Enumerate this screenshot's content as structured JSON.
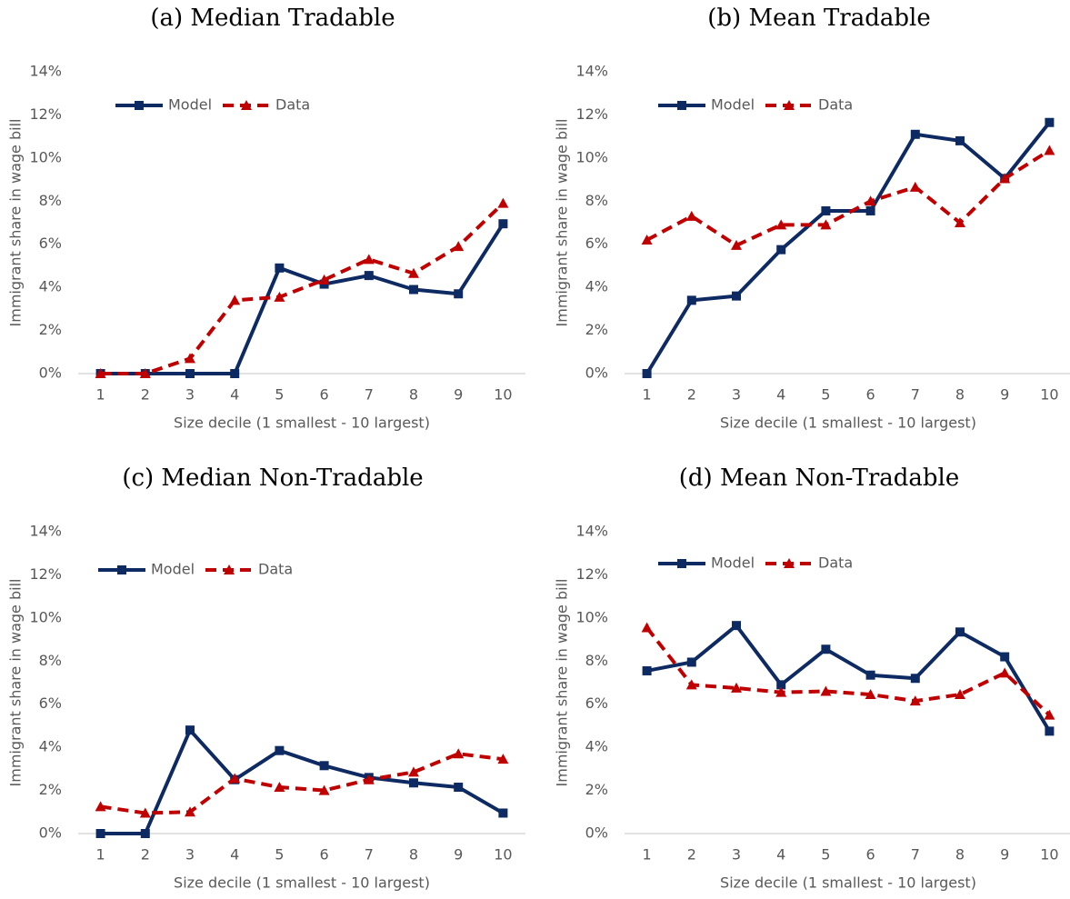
{
  "chart_data": [
    {
      "type": "line",
      "title": "(a) Median Tradable",
      "x_label": "Size decile (1 smallest - 10 largest)",
      "y_label": "Immigrant share in wage bill",
      "categories": [
        "1",
        "2",
        "3",
        "4",
        "5",
        "6",
        "7",
        "8",
        "9",
        "10"
      ],
      "series": [
        {
          "name": "Model",
          "color": "#0e2a62",
          "marker": "square",
          "linestyle": "solid",
          "values": [
            0,
            0,
            0,
            0,
            4.9,
            4.15,
            4.55,
            3.9,
            3.7,
            6.95
          ]
        },
        {
          "name": "Data",
          "color": "#c00000",
          "marker": "triangle",
          "linestyle": "dashed",
          "values": [
            0,
            0,
            0.7,
            3.4,
            3.55,
            4.35,
            5.3,
            4.65,
            5.9,
            7.9
          ]
        }
      ],
      "ylim": [
        0,
        14
      ],
      "yticks": [
        {
          "value": 0,
          "label": "0%"
        },
        {
          "value": 2,
          "label": "2%"
        },
        {
          "value": 4,
          "label": "4%"
        },
        {
          "value": 6,
          "label": "6%"
        },
        {
          "value": 8,
          "label": "8%"
        },
        {
          "value": 10,
          "label": "10%"
        },
        {
          "value": 12,
          "label": "12%"
        },
        {
          "value": 14,
          "label": "14%"
        }
      ],
      "grid": false,
      "legend": "upper left"
    },
    {
      "type": "line",
      "title": "(b) Mean Tradable",
      "x_label": "Size decile (1 smallest - 10 largest)",
      "y_label": "Immigrant share in wage bill",
      "categories": [
        "1",
        "2",
        "3",
        "4",
        "5",
        "6",
        "7",
        "8",
        "9",
        "10"
      ],
      "series": [
        {
          "name": "Model",
          "color": "#0e2a62",
          "marker": "square",
          "linestyle": "solid",
          "values": [
            0,
            3.4,
            3.6,
            5.75,
            7.55,
            7.55,
            11.1,
            10.8,
            9.05,
            11.65
          ]
        },
        {
          "name": "Data",
          "color": "#c00000",
          "marker": "triangle",
          "linestyle": "dashed",
          "values": [
            6.2,
            7.3,
            5.95,
            6.9,
            6.9,
            8.0,
            8.65,
            7.0,
            9.05,
            10.35
          ]
        }
      ],
      "ylim": [
        0,
        14
      ],
      "yticks": [
        {
          "value": 0,
          "label": "0%"
        },
        {
          "value": 2,
          "label": "2%"
        },
        {
          "value": 4,
          "label": "4%"
        },
        {
          "value": 6,
          "label": "6%"
        },
        {
          "value": 8,
          "label": "8%"
        },
        {
          "value": 10,
          "label": "10%"
        },
        {
          "value": 12,
          "label": "12%"
        },
        {
          "value": 14,
          "label": "14%"
        }
      ],
      "grid": false,
      "legend": "upper left"
    },
    {
      "type": "line",
      "title": "(c) Median Non-Tradable",
      "x_label": "Size decile (1 smallest - 10 largest)",
      "y_label": "Immigrant share in wage bill",
      "categories": [
        "1",
        "2",
        "3",
        "4",
        "5",
        "6",
        "7",
        "8",
        "9",
        "10"
      ],
      "series": [
        {
          "name": "Model",
          "color": "#0e2a62",
          "marker": "square",
          "linestyle": "solid",
          "values": [
            0,
            0,
            4.8,
            2.5,
            3.85,
            3.15,
            2.6,
            2.35,
            2.15,
            0.95
          ]
        },
        {
          "name": "Data",
          "color": "#c00000",
          "marker": "triangle",
          "linestyle": "dashed",
          "values": [
            1.25,
            0.95,
            1.0,
            2.55,
            2.15,
            2.0,
            2.5,
            2.85,
            3.7,
            3.45
          ]
        }
      ],
      "ylim": [
        0,
        14
      ],
      "yticks": [
        {
          "value": 0,
          "label": "0%"
        },
        {
          "value": 2,
          "label": "2%"
        },
        {
          "value": 4,
          "label": "4%"
        },
        {
          "value": 6,
          "label": "6%"
        },
        {
          "value": 8,
          "label": "8%"
        },
        {
          "value": 10,
          "label": "10%"
        },
        {
          "value": 12,
          "label": "12%"
        },
        {
          "value": 14,
          "label": "14%"
        }
      ],
      "grid": false,
      "legend": "upper left"
    },
    {
      "type": "line",
      "title": "(d) Mean Non-Tradable",
      "x_label": "Size decile (1 smallest - 10 largest)",
      "y_label": "Immigrant share in wage bill",
      "categories": [
        "1",
        "2",
        "3",
        "4",
        "5",
        "6",
        "7",
        "8",
        "9",
        "10"
      ],
      "series": [
        {
          "name": "Model",
          "color": "#0e2a62",
          "marker": "square",
          "linestyle": "solid",
          "values": [
            7.55,
            7.95,
            9.65,
            6.9,
            8.55,
            7.35,
            7.2,
            9.35,
            8.2,
            4.75
          ]
        },
        {
          "name": "Data",
          "color": "#c00000",
          "marker": "triangle",
          "linestyle": "dashed",
          "values": [
            9.55,
            6.9,
            6.75,
            6.55,
            6.6,
            6.45,
            6.15,
            6.45,
            7.45,
            5.5
          ]
        }
      ],
      "ylim": [
        0,
        14
      ],
      "yticks": [
        {
          "value": 0,
          "label": "0%"
        },
        {
          "value": 2,
          "label": "2%"
        },
        {
          "value": 4,
          "label": "4%"
        },
        {
          "value": 6,
          "label": "6%"
        },
        {
          "value": 8,
          "label": "8%"
        },
        {
          "value": 10,
          "label": "10%"
        },
        {
          "value": 12,
          "label": "12%"
        },
        {
          "value": 14,
          "label": "14%"
        }
      ],
      "grid": false,
      "legend": "upper left"
    }
  ]
}
